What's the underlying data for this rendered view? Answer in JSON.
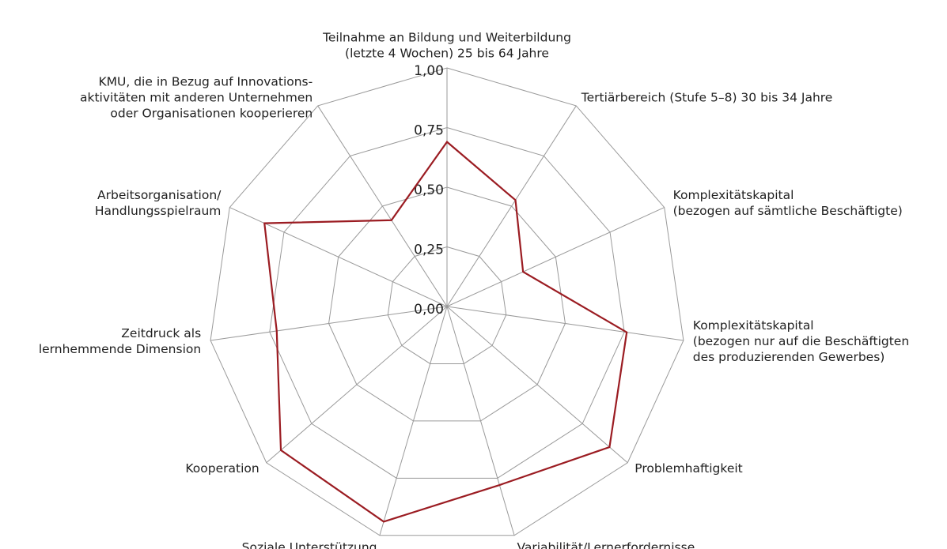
{
  "chart_data": {
    "type": "radar",
    "categories": [
      [
        "Teilnahme an Bildung und Weiterbildung",
        "(letzte 4 Wochen) 25 bis 64 Jahre"
      ],
      [
        "Tertiärbereich (Stufe 5–8) 30 bis 34 Jahre"
      ],
      [
        "Komplexitätskapital",
        "(bezogen auf sämtliche Beschäftigte)"
      ],
      [
        "Komplexitätskapital",
        "(bezogen nur auf die Beschäftigten",
        "des produzierenden Gewerbes)"
      ],
      [
        "Problemhaftigkeit"
      ],
      [
        "Variabilität/Lernerfordernisse"
      ],
      [
        "Soziale Unterstützung"
      ],
      [
        "Kooperation"
      ],
      [
        "Zeitdruck als",
        "lernhemmende Dimension"
      ],
      [
        "Arbeitsorganisation/",
        "Handlungsspielraum"
      ],
      [
        "KMU, die in Bezug auf Innovations-",
        "aktivitäten mit anderen Unternehmen",
        "oder Organisationen kooperieren"
      ]
    ],
    "values": [
      0.69,
      0.53,
      0.35,
      0.76,
      0.9,
      0.78,
      0.94,
      0.92,
      0.72,
      0.84,
      0.43
    ],
    "color": "#9b1c22",
    "ylim": [
      0,
      1
    ],
    "yticks": [
      {
        "value": 0,
        "label": "0,00"
      },
      {
        "value": 0.25,
        "label": "0,25"
      },
      {
        "value": 0.5,
        "label": "0,50"
      },
      {
        "value": 0.75,
        "label": "0,75"
      },
      {
        "value": 1,
        "label": "1,00"
      }
    ]
  }
}
